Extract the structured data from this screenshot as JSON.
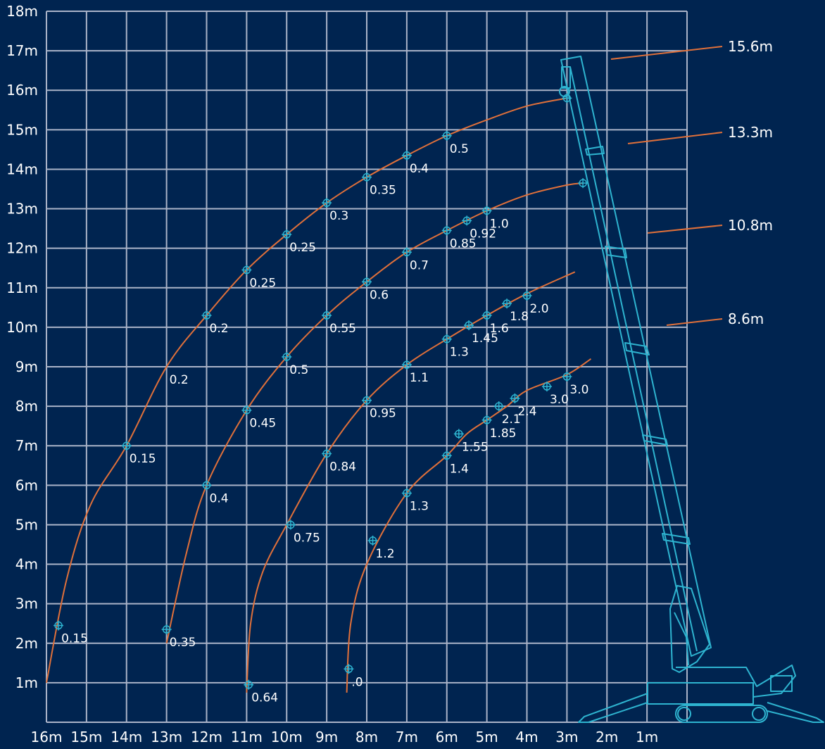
{
  "title": "",
  "colors": {
    "background": "#002450",
    "grid": "#aab3c8",
    "curve": "#e0703a",
    "crane": "#2eb4d0",
    "text": "#ffffff"
  },
  "x_ticks": [
    "16m",
    "15m",
    "14m",
    "13m",
    "12m",
    "11m",
    "10m",
    "9m",
    "8m",
    "7m",
    "6m",
    "5m",
    "4m",
    "3m",
    "2m",
    "1m"
  ],
  "y_ticks": [
    "1m",
    "2m",
    "3m",
    "4m",
    "5m",
    "6m",
    "7m",
    "8m",
    "9m",
    "10m",
    "11m",
    "12m",
    "13m",
    "14m",
    "15m",
    "16m",
    "17m",
    "18m"
  ],
  "boom_lengths": [
    "15.6m",
    "13.3m",
    "10.8m",
    "8.6m"
  ],
  "chart_data": {
    "type": "load-chart",
    "x_axis": "working radius (m), decreasing to the right",
    "y_axis": "lifting height (m)",
    "xlim": [
      16,
      0
    ],
    "ylim": [
      0,
      18
    ],
    "curves": [
      {
        "boom": "15.6m",
        "path": [
          [
            16.0,
            1.0
          ],
          [
            15.5,
            3.6
          ],
          [
            14.9,
            5.5
          ],
          [
            14.0,
            7.0
          ],
          [
            13.0,
            9.0
          ],
          [
            12.0,
            10.3
          ],
          [
            11.0,
            11.45
          ],
          [
            10.0,
            12.35
          ],
          [
            9.0,
            13.15
          ],
          [
            8.0,
            13.8
          ],
          [
            7.0,
            14.35
          ],
          [
            6.0,
            14.85
          ],
          [
            5.0,
            15.25
          ],
          [
            4.0,
            15.6
          ],
          [
            3.0,
            15.8
          ]
        ],
        "points": [
          {
            "x": 15.7,
            "y": 2.45,
            "label": "0.15"
          },
          {
            "x": 14.0,
            "y": 7.0,
            "label": "0.15"
          },
          {
            "x": 13.0,
            "y": 9.0,
            "label": "0.2",
            "marker": false
          },
          {
            "x": 12.0,
            "y": 10.3,
            "label": "0.2"
          },
          {
            "x": 11.0,
            "y": 11.45,
            "label": "0.25"
          },
          {
            "x": 10.0,
            "y": 12.35,
            "label": "0.25"
          },
          {
            "x": 9.0,
            "y": 13.15,
            "label": "0.3"
          },
          {
            "x": 8.0,
            "y": 13.8,
            "label": "0.35"
          },
          {
            "x": 7.0,
            "y": 14.35,
            "label": "0.4"
          },
          {
            "x": 6.0,
            "y": 14.85,
            "label": "0.5"
          },
          {
            "x": 3.0,
            "y": 15.8,
            "label": ""
          }
        ]
      },
      {
        "boom": "13.3m",
        "path": [
          [
            13.0,
            2.0
          ],
          [
            12.5,
            4.3
          ],
          [
            12.0,
            6.0
          ],
          [
            11.0,
            7.9
          ],
          [
            10.0,
            9.25
          ],
          [
            9.0,
            10.3
          ],
          [
            8.0,
            11.15
          ],
          [
            7.0,
            11.9
          ],
          [
            6.0,
            12.45
          ],
          [
            5.0,
            12.95
          ],
          [
            4.0,
            13.35
          ],
          [
            3.0,
            13.6
          ],
          [
            2.6,
            13.65
          ]
        ],
        "points": [
          {
            "x": 13.0,
            "y": 2.35,
            "label": "0.35"
          },
          {
            "x": 12.0,
            "y": 6.0,
            "label": "0.4"
          },
          {
            "x": 11.0,
            "y": 7.9,
            "label": "0.45"
          },
          {
            "x": 10.0,
            "y": 9.25,
            "label": "0.5"
          },
          {
            "x": 9.0,
            "y": 10.3,
            "label": "0.55"
          },
          {
            "x": 8.0,
            "y": 11.15,
            "label": "0.6"
          },
          {
            "x": 7.0,
            "y": 11.9,
            "label": "0.7"
          },
          {
            "x": 6.0,
            "y": 12.45,
            "label": "0.85"
          },
          {
            "x": 5.5,
            "y": 12.7,
            "label": "0.92"
          },
          {
            "x": 5.0,
            "y": 12.95,
            "label": "1.0"
          },
          {
            "x": 2.6,
            "y": 13.65,
            "label": ""
          }
        ]
      },
      {
        "boom": "10.8m",
        "path": [
          [
            11.0,
            0.75
          ],
          [
            10.9,
            2.5
          ],
          [
            10.6,
            3.8
          ],
          [
            10.0,
            5.0
          ],
          [
            9.0,
            6.8
          ],
          [
            8.0,
            8.15
          ],
          [
            7.0,
            9.05
          ],
          [
            6.0,
            9.7
          ],
          [
            5.0,
            10.3
          ],
          [
            4.0,
            10.85
          ],
          [
            2.8,
            11.4
          ]
        ],
        "points": [
          {
            "x": 10.95,
            "y": 0.95,
            "label": "0.64"
          },
          {
            "x": 9.9,
            "y": 5.0,
            "label": "0.75"
          },
          {
            "x": 9.0,
            "y": 6.8,
            "label": "0.84"
          },
          {
            "x": 8.0,
            "y": 8.15,
            "label": "0.95"
          },
          {
            "x": 7.0,
            "y": 9.05,
            "label": "1.1"
          },
          {
            "x": 6.0,
            "y": 9.7,
            "label": "1.3"
          },
          {
            "x": 5.45,
            "y": 10.05,
            "label": "1.45"
          },
          {
            "x": 5.0,
            "y": 10.3,
            "label": "1.6"
          },
          {
            "x": 4.5,
            "y": 10.6,
            "label": "1.8"
          },
          {
            "x": 4.0,
            "y": 10.8,
            "label": "2.0"
          }
        ]
      },
      {
        "boom": "8.6m",
        "path": [
          [
            8.5,
            0.75
          ],
          [
            8.4,
            2.5
          ],
          [
            8.0,
            4.0
          ],
          [
            7.0,
            5.8
          ],
          [
            6.0,
            6.75
          ],
          [
            5.5,
            7.3
          ],
          [
            5.0,
            7.65
          ],
          [
            4.5,
            8.0
          ],
          [
            4.0,
            8.4
          ],
          [
            3.0,
            8.8
          ],
          [
            2.4,
            9.2
          ]
        ],
        "points": [
          {
            "x": 8.45,
            "y": 1.35,
            "label": "0",
            "label_display": ".0"
          },
          {
            "x": 7.85,
            "y": 4.6,
            "label": "1.2"
          },
          {
            "x": 7.0,
            "y": 5.8,
            "label": "1.3"
          },
          {
            "x": 6.0,
            "y": 6.75,
            "label": "1.4"
          },
          {
            "x": 5.7,
            "y": 7.3,
            "label": "1.55"
          },
          {
            "x": 5.0,
            "y": 7.65,
            "label": "1.85"
          },
          {
            "x": 4.7,
            "y": 8.0,
            "label": "2.1"
          },
          {
            "x": 4.3,
            "y": 8.2,
            "label": "2.4"
          },
          {
            "x": 3.5,
            "y": 8.5,
            "label": "3.0"
          },
          {
            "x": 3.0,
            "y": 8.75,
            "label": "3.0"
          }
        ]
      }
    ]
  }
}
